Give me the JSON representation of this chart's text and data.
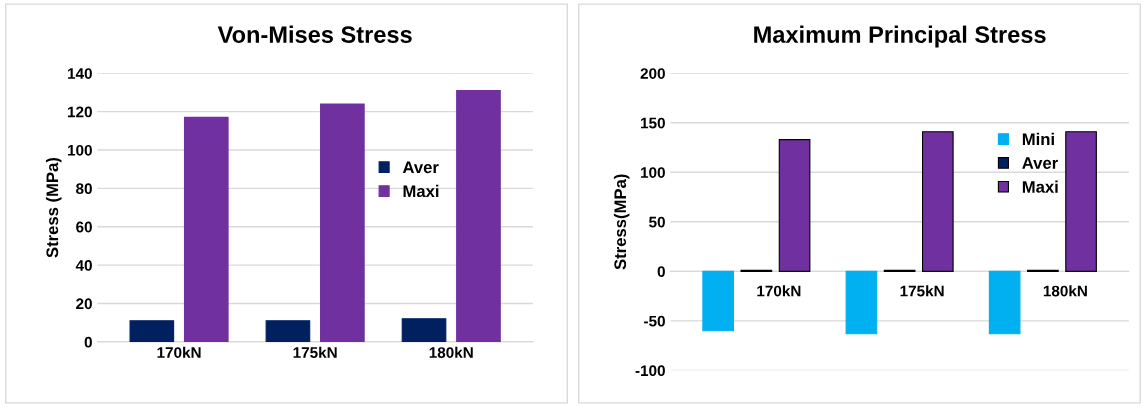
{
  "chart_data": [
    {
      "type": "bar",
      "title": "Von-Mises Stress",
      "ylabel": "Stress (MPa)",
      "categories": [
        "170kN",
        "175kN",
        "180kN"
      ],
      "series": [
        {
          "name": "Aver",
          "color": "#002060",
          "values": [
            11,
            11,
            12
          ]
        },
        {
          "name": "Maxi",
          "color": "#7030a0",
          "values": [
            117,
            124,
            131
          ]
        }
      ],
      "ylim": [
        0,
        140
      ],
      "yticks": [
        0,
        20,
        40,
        60,
        80,
        100,
        120,
        140
      ],
      "grid": "y",
      "legend": "right"
    },
    {
      "type": "bar",
      "title": "Maximum Principal Stress",
      "ylabel": "Stress(MPa)",
      "categories": [
        "170kN",
        "175kN",
        "180kN"
      ],
      "series": [
        {
          "name": "Mini",
          "color": "#00b0f0",
          "values": [
            -60,
            -63,
            -63
          ]
        },
        {
          "name": "Aver",
          "color": "#002060",
          "values": [
            1,
            1,
            1
          ]
        },
        {
          "name": "Maxi",
          "color": "#7030a0",
          "values": [
            133,
            141,
            141
          ]
        }
      ],
      "ylim": [
        -100,
        200
      ],
      "yticks": [
        -100,
        -50,
        0,
        50,
        100,
        150,
        200
      ],
      "grid": "y",
      "legend": "upper right"
    }
  ]
}
